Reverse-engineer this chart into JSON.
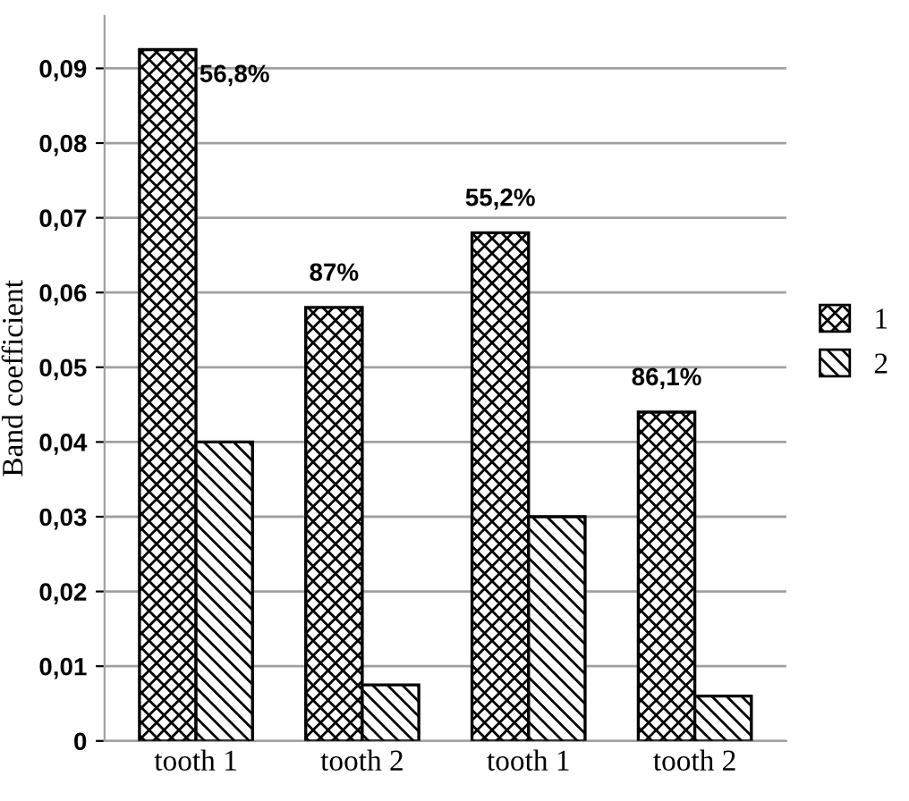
{
  "chart_data": {
    "type": "bar",
    "ylabel": "Band coefficient",
    "categories": [
      "tooth 1",
      "tooth 2",
      "tooth 1",
      "tooth 2"
    ],
    "series": [
      {
        "name": "1",
        "color": "#000000",
        "values": [
          0.0925,
          0.058,
          0.068,
          0.044
        ]
      },
      {
        "name": "2",
        "color": "#000000",
        "values": [
          0.04,
          0.0075,
          0.03,
          0.006
        ]
      }
    ],
    "annotations": [
      "56,8%",
      "87%",
      "55,2%",
      "86,1%"
    ],
    "ylim": [
      0,
      0.097
    ],
    "yticks": [
      0,
      {
        "value": 0.01,
        "label": "0,01"
      },
      {
        "value": 0.02,
        "label": "0,02"
      },
      {
        "value": 0.03,
        "label": "0,03"
      },
      {
        "value": 0.04,
        "label": "0,04"
      },
      {
        "value": 0.05,
        "label": "0,05"
      },
      {
        "value": 0.06,
        "label": "0,06"
      },
      {
        "value": 0.07,
        "label": "0,07"
      },
      {
        "value": 0.08,
        "label": "0,08"
      },
      {
        "value": 0.09,
        "label": "0,09"
      }
    ],
    "grid": "y",
    "legend": "right"
  }
}
